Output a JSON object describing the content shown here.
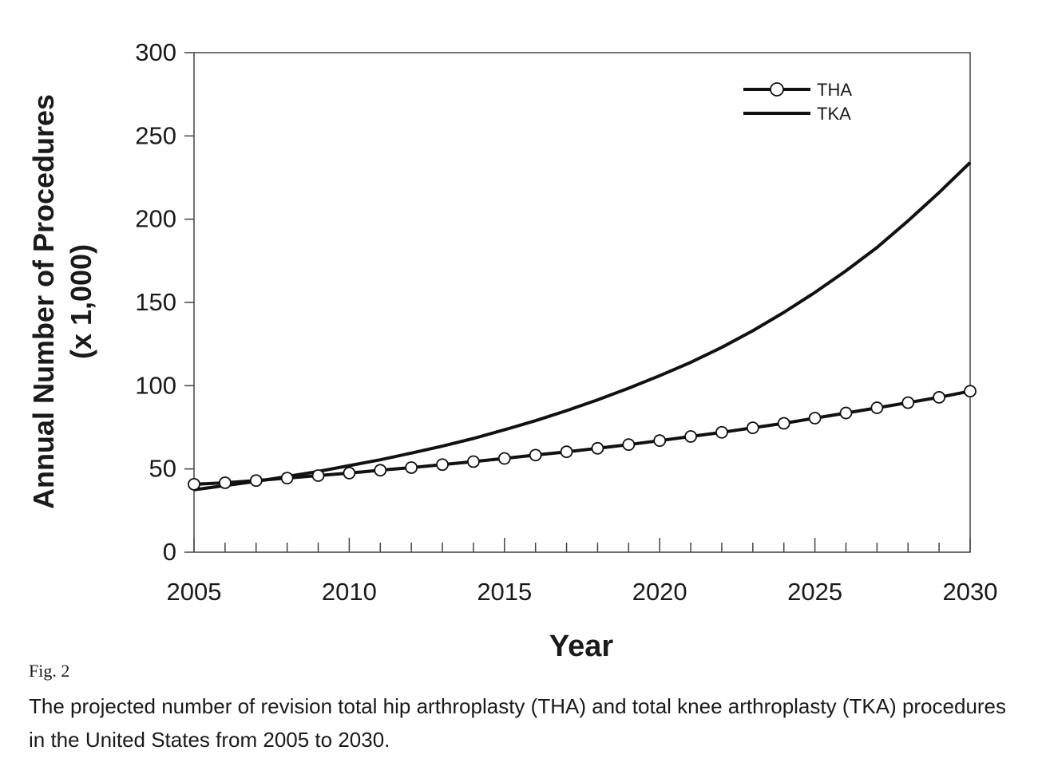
{
  "chart_data": {
    "type": "line",
    "xlabel": "Year",
    "ylabel": "Annual Number of Procedures",
    "ylabel_units": "(x 1,000)",
    "xlim": [
      2005,
      2030
    ],
    "ylim": [
      0,
      300
    ],
    "x_ticks": [
      "2005",
      "2010",
      "2015",
      "2020",
      "2025",
      "2030"
    ],
    "y_ticks": [
      "0",
      "50",
      "100",
      "150",
      "200",
      "250",
      "300"
    ],
    "grid": false,
    "legend_position": "top-right",
    "x": [
      2005,
      2006,
      2007,
      2008,
      2009,
      2010,
      2011,
      2012,
      2013,
      2014,
      2015,
      2016,
      2017,
      2018,
      2019,
      2020,
      2021,
      2022,
      2023,
      2024,
      2025,
      2026,
      2027,
      2028,
      2029,
      2030
    ],
    "series": [
      {
        "name": "THA",
        "marker": "open-circle",
        "values": [
          40.8,
          41.7,
          43.0,
          44.5,
          46.0,
          47.5,
          49.2,
          50.8,
          52.6,
          54.4,
          56.3,
          58.3,
          60.3,
          62.4,
          64.6,
          67.0,
          69.5,
          72.0,
          74.7,
          77.4,
          80.5,
          83.6,
          86.7,
          89.8,
          93.0,
          96.7
        ]
      },
      {
        "name": "TKA",
        "marker": "none",
        "values": [
          37.5,
          40.0,
          42.5,
          45.5,
          48.5,
          52.0,
          55.5,
          59.5,
          63.7,
          68.3,
          73.5,
          79.0,
          85.0,
          91.5,
          98.5,
          106.0,
          114.0,
          123.0,
          133.0,
          144.0,
          156.0,
          169.0,
          183.0,
          199.0,
          216.0,
          234.0
        ]
      }
    ]
  },
  "figure": {
    "label": "Fig. 2",
    "caption": "The projected number of revision total hip arthroplasty (THA) and total knee arthroplasty (TKA) procedures in the United States from 2005 to 2030."
  },
  "colors": {
    "line": "#111111",
    "marker_fill": "#ffffff"
  }
}
